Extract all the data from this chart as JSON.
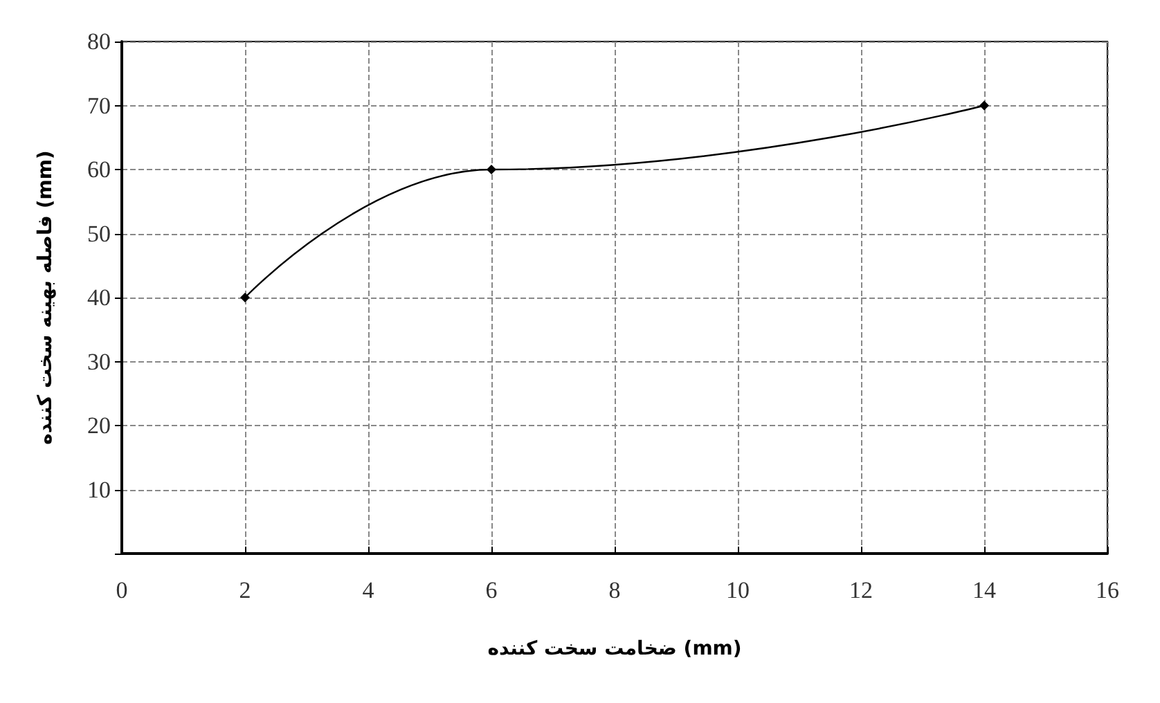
{
  "chart_data": {
    "type": "line",
    "xlabel": "ضخامت سخت کننده (mm)",
    "ylabel": "فاصله بهینه سخت کننده (mm)",
    "x": [
      2,
      6,
      14
    ],
    "series": [
      {
        "color": "#000000",
        "values": [
          40,
          60,
          70
        ]
      }
    ],
    "xlim": [
      0,
      16
    ],
    "xticks": [
      0,
      2,
      4,
      6,
      8,
      10,
      12,
      14,
      16
    ],
    "ylim": [
      0,
      80
    ],
    "yticks": [
      {
        "value": 0,
        "label": null
      },
      10,
      20,
      30,
      40,
      50,
      60,
      70,
      80
    ],
    "grid": true,
    "marker": "diamond",
    "line_style": "solid"
  }
}
